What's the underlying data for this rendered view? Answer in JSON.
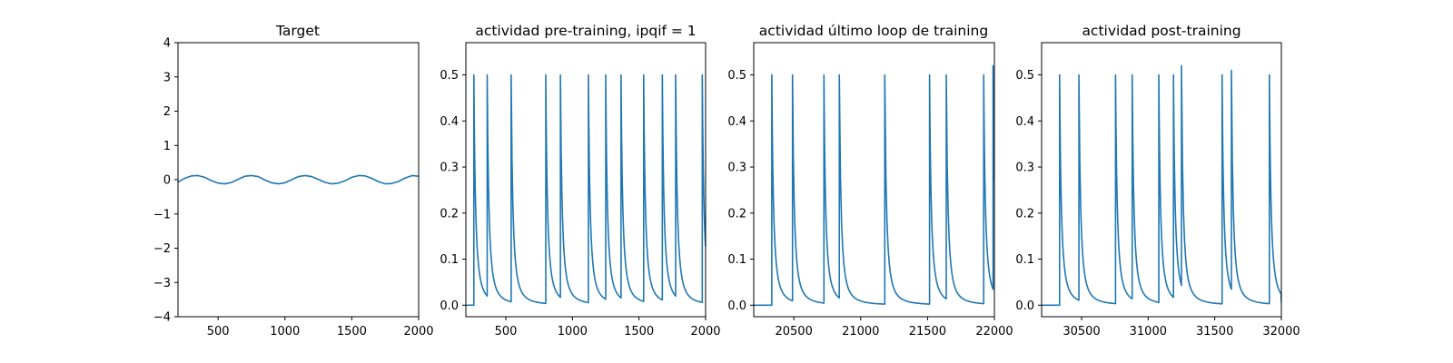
{
  "chart_data": [
    {
      "type": "line",
      "title": "Target",
      "xlabel": "",
      "ylabel": "",
      "xlim": [
        200,
        2000
      ],
      "ylim": [
        -4,
        4
      ],
      "xticks": [
        500,
        1000,
        1500,
        2000
      ],
      "yticks": [
        -4,
        -3,
        -2,
        -1,
        0,
        1,
        2,
        3,
        4
      ],
      "grid": false,
      "series": [
        {
          "color": "#1f77b4",
          "x": [
            200,
            250,
            300,
            350,
            400,
            450,
            500,
            550,
            600,
            650,
            700,
            750,
            800,
            850,
            900,
            950,
            1000,
            1050,
            1100,
            1150,
            1200,
            1250,
            1300,
            1350,
            1400,
            1450,
            1500,
            1550,
            1600,
            1650,
            1700,
            1750,
            1800,
            1850,
            1900,
            1950,
            2000
          ],
          "y": [
            -0.07,
            0.04,
            0.11,
            0.12,
            0.07,
            -0.03,
            -0.1,
            -0.12,
            -0.08,
            0.01,
            0.1,
            0.12,
            0.09,
            -0.01,
            -0.09,
            -0.12,
            -0.09,
            0.0,
            0.09,
            0.12,
            0.09,
            0.01,
            -0.08,
            -0.12,
            -0.1,
            -0.03,
            0.07,
            0.12,
            0.11,
            0.04,
            -0.06,
            -0.12,
            -0.11,
            -0.05,
            0.05,
            0.12,
            0.1
          ]
        }
      ]
    },
    {
      "type": "line",
      "title": "actividad pre-training, ipqif = 1",
      "xlabel": "",
      "ylabel": "",
      "xlim": [
        200,
        2000
      ],
      "ylim": [
        -0.025,
        0.57
      ],
      "xticks": [
        500,
        1000,
        1500,
        2000
      ],
      "yticks": [
        0.0,
        0.1,
        0.2,
        0.3,
        0.4,
        0.5
      ],
      "yticklabels": [
        "0.0",
        "0.1",
        "0.2",
        "0.3",
        "0.4",
        "0.5"
      ],
      "grid": false,
      "spike_decay": 25,
      "series": [
        {
          "color": "#1f77b4",
          "spike_times": [
            260,
            360,
            540,
            800,
            910,
            1120,
            1250,
            1365,
            1535,
            1675,
            1775,
            1975
          ],
          "spike_peaks": [
            0.5,
            0.5,
            0.5,
            0.5,
            0.5,
            0.5,
            0.5,
            0.5,
            0.5,
            0.5,
            0.5,
            0.5
          ],
          "end_value": 0.13
        }
      ]
    },
    {
      "type": "line",
      "title": "actividad último loop de training",
      "xlabel": "",
      "ylabel": "",
      "xlim": [
        20200,
        22000
      ],
      "ylim": [
        -0.025,
        0.57
      ],
      "xticks": [
        20500,
        21000,
        21500,
        22000
      ],
      "yticks": [
        0.0,
        0.1,
        0.2,
        0.3,
        0.4,
        0.5
      ],
      "yticklabels": [
        "0.0",
        "0.1",
        "0.2",
        "0.3",
        "0.4",
        "0.5"
      ],
      "grid": false,
      "spike_decay": 25,
      "series": [
        {
          "color": "#1f77b4",
          "spike_times": [
            20335,
            20490,
            20725,
            20840,
            21180,
            21515,
            21640,
            21920,
            21990
          ],
          "spike_peaks": [
            0.5,
            0.5,
            0.5,
            0.5,
            0.5,
            0.5,
            0.5,
            0.5,
            0.52
          ],
          "end_value": 0.31
        }
      ]
    },
    {
      "type": "line",
      "title": "actividad post-training",
      "xlabel": "",
      "ylabel": "",
      "xlim": [
        30200,
        32000
      ],
      "ylim": [
        -0.025,
        0.57
      ],
      "xticks": [
        30500,
        31000,
        31500,
        32000
      ],
      "yticks": [
        0.0,
        0.1,
        0.2,
        0.3,
        0.4,
        0.5
      ],
      "yticklabels": [
        "0.0",
        "0.1",
        "0.2",
        "0.3",
        "0.4",
        "0.5"
      ],
      "grid": false,
      "spike_decay": 25,
      "series": [
        {
          "color": "#1f77b4",
          "spike_times": [
            30335,
            30480,
            30755,
            30880,
            31080,
            31190,
            31250,
            31555,
            31625,
            31910
          ],
          "spike_peaks": [
            0.5,
            0.5,
            0.5,
            0.5,
            0.5,
            0.5,
            0.52,
            0.5,
            0.51,
            0.5
          ],
          "end_value": 0.005
        }
      ]
    }
  ]
}
